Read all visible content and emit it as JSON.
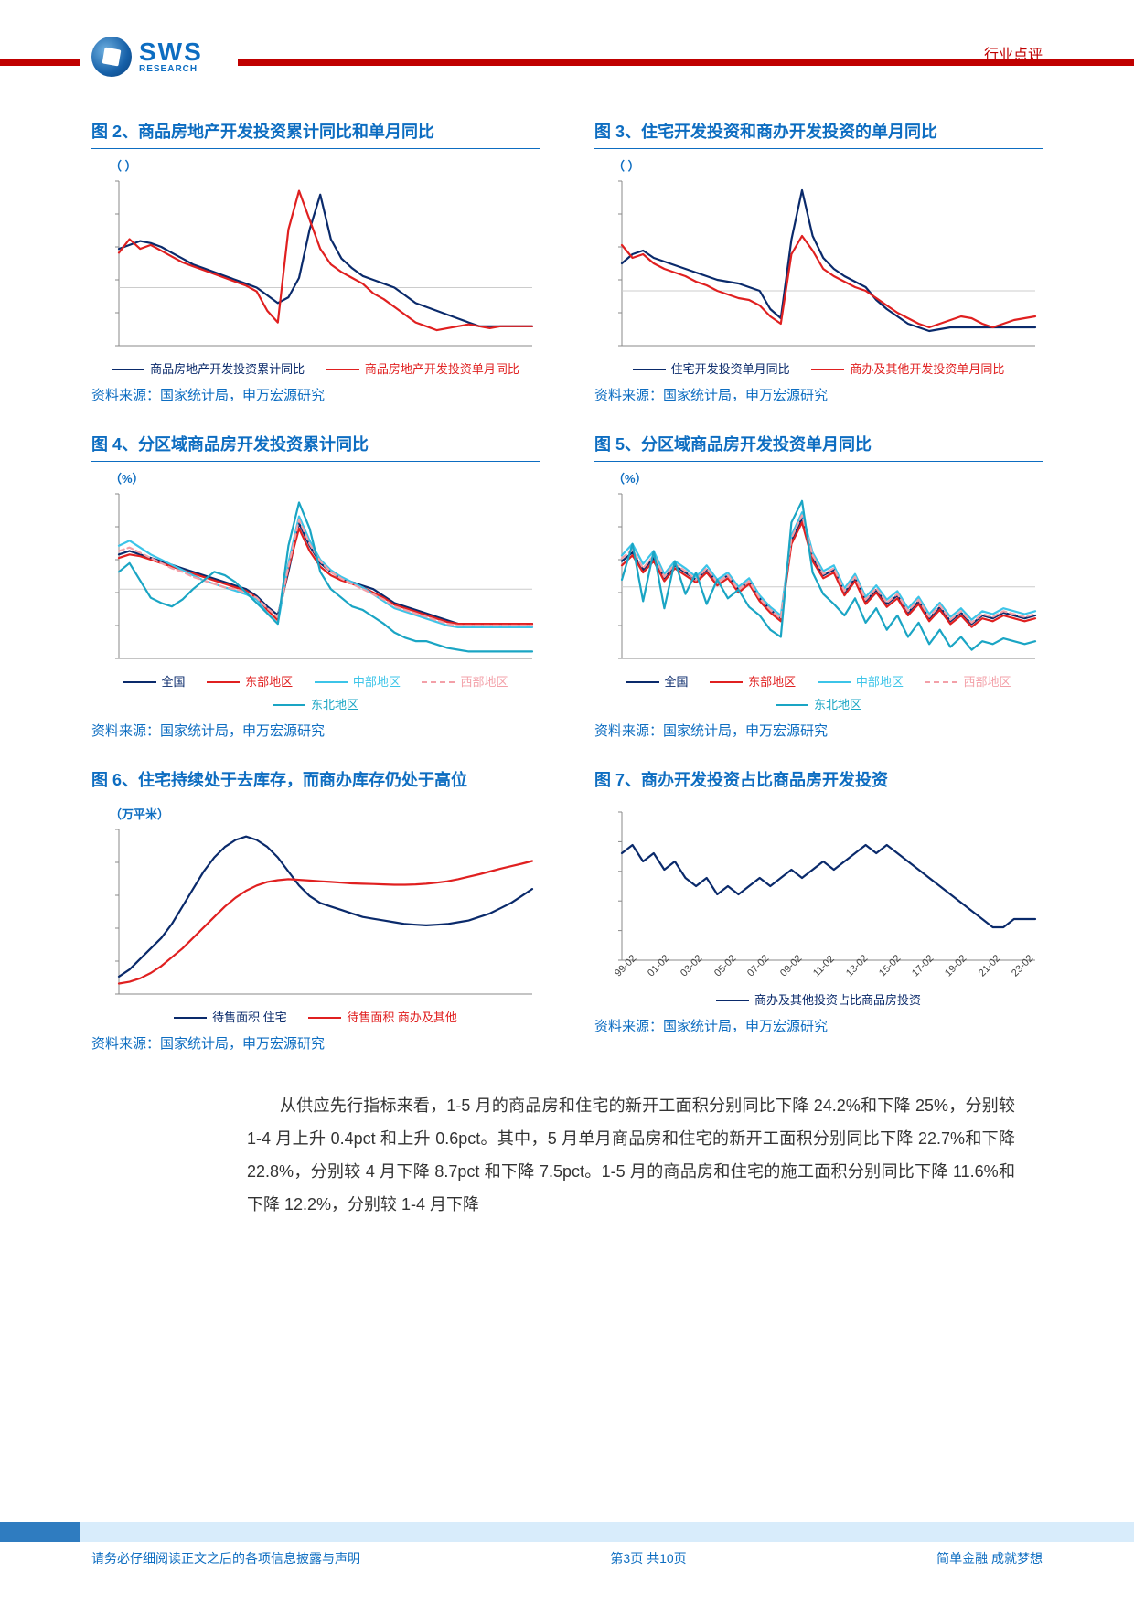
{
  "header": {
    "logo_main": "SWS",
    "logo_sub": "RESEARCH",
    "tag": "行业点评"
  },
  "colors": {
    "brand_blue": "#0d6dc1",
    "brand_red": "#c00000",
    "navy": "#0a2a6b",
    "red": "#e02020",
    "cyan": "#3cc4e8",
    "pink": "#f3a0a8",
    "teal": "#1aa5c4",
    "axis": "#888888",
    "text": "#555555"
  },
  "charts": {
    "c2": {
      "title": "图 2、商品房地产开发投资累计同比和单月同比",
      "unit": "（ ）",
      "type": "line",
      "x": [
        0,
        1,
        2,
        3,
        4,
        5,
        6,
        7,
        8,
        9,
        10,
        11,
        12,
        13,
        14,
        15,
        16,
        17,
        18,
        19,
        20,
        21,
        22,
        23,
        24,
        25,
        26,
        27,
        28,
        29,
        30,
        31,
        32,
        33,
        34,
        35,
        36,
        37,
        38,
        39
      ],
      "series": [
        {
          "name": "商品房地产开发投资累计同比",
          "color": "#0a2a6b",
          "style": "solid",
          "y": [
            20,
            22,
            24,
            23,
            21,
            18,
            15,
            12,
            10,
            8,
            6,
            4,
            2,
            0,
            -4,
            -8,
            -5,
            5,
            30,
            48,
            25,
            15,
            10,
            6,
            4,
            2,
            0,
            -4,
            -8,
            -10,
            -12,
            -14,
            -16,
            -18,
            -20,
            -20,
            -20,
            -20,
            -20,
            -20
          ]
        },
        {
          "name": "商品房地产开发投资单月同比",
          "color": "#e02020",
          "style": "solid",
          "y": [
            18,
            25,
            20,
            22,
            19,
            16,
            13,
            11,
            9,
            7,
            5,
            3,
            1,
            -2,
            -12,
            -18,
            30,
            50,
            35,
            20,
            12,
            8,
            5,
            2,
            -3,
            -6,
            -10,
            -14,
            -18,
            -20,
            -22,
            -21,
            -20,
            -19,
            -20,
            -21,
            -20,
            -20,
            -20,
            -20
          ]
        }
      ],
      "ylim": [
        -30,
        55
      ],
      "source": "资料来源：国家统计局，申万宏源研究"
    },
    "c3": {
      "title": "图 3、住宅开发投资和商办开发投资的单月同比",
      "unit": "（ ）",
      "type": "line",
      "x": [
        0,
        1,
        2,
        3,
        4,
        5,
        6,
        7,
        8,
        9,
        10,
        11,
        12,
        13,
        14,
        15,
        16,
        17,
        18,
        19,
        20,
        21,
        22,
        23,
        24,
        25,
        26,
        27,
        28,
        29,
        30,
        31,
        32,
        33,
        34,
        35,
        36,
        37,
        38,
        39
      ],
      "series": [
        {
          "name": "住宅开发投资单月同比",
          "color": "#0a2a6b",
          "style": "solid",
          "y": [
            15,
            20,
            22,
            18,
            16,
            14,
            12,
            10,
            8,
            6,
            5,
            4,
            2,
            0,
            -10,
            -15,
            28,
            55,
            30,
            18,
            12,
            8,
            5,
            2,
            -5,
            -10,
            -14,
            -18,
            -20,
            -22,
            -21,
            -20,
            -20,
            -20,
            -20,
            -20,
            -20,
            -20,
            -20,
            -20
          ]
        },
        {
          "name": "商办及其他开发投资单月同比",
          "color": "#e02020",
          "style": "solid",
          "y": [
            25,
            18,
            20,
            15,
            12,
            10,
            8,
            5,
            3,
            0,
            -2,
            -4,
            -5,
            -8,
            -14,
            -18,
            20,
            30,
            22,
            12,
            8,
            5,
            2,
            0,
            -4,
            -8,
            -12,
            -15,
            -18,
            -20,
            -18,
            -16,
            -14,
            -15,
            -18,
            -20,
            -18,
            -16,
            -15,
            -14
          ]
        }
      ],
      "ylim": [
        -30,
        60
      ],
      "source": "资料来源：国家统计局，申万宏源研究"
    },
    "c4": {
      "title": "图 4、分区域商品房开发投资累计同比",
      "unit": "（%）",
      "type": "line",
      "x": [
        0,
        1,
        2,
        3,
        4,
        5,
        6,
        7,
        8,
        9,
        10,
        11,
        12,
        13,
        14,
        15,
        16,
        17,
        18,
        19,
        20,
        21,
        22,
        23,
        24,
        25,
        26,
        27,
        28,
        29,
        30,
        31,
        32,
        33,
        34,
        35,
        36,
        37,
        38,
        39
      ],
      "series": [
        {
          "name": "全国",
          "color": "#0a2a6b",
          "style": "solid",
          "y": [
            20,
            22,
            20,
            18,
            16,
            14,
            12,
            10,
            8,
            6,
            4,
            2,
            0,
            -4,
            -10,
            -15,
            10,
            38,
            25,
            15,
            10,
            6,
            4,
            2,
            0,
            -4,
            -8,
            -10,
            -12,
            -14,
            -16,
            -18,
            -20,
            -20,
            -20,
            -20,
            -20,
            -20,
            -20,
            -20
          ]
        },
        {
          "name": "东部地区",
          "color": "#e02020",
          "style": "solid",
          "y": [
            18,
            20,
            19,
            17,
            15,
            13,
            11,
            9,
            7,
            5,
            3,
            1,
            -1,
            -5,
            -12,
            -18,
            12,
            35,
            22,
            13,
            8,
            5,
            3,
            1,
            -2,
            -5,
            -9,
            -11,
            -13,
            -15,
            -17,
            -19,
            -20,
            -20,
            -20,
            -20,
            -20,
            -20,
            -20,
            -20
          ]
        },
        {
          "name": "中部地区",
          "color": "#3cc4e8",
          "style": "solid",
          "y": [
            25,
            28,
            24,
            20,
            17,
            14,
            11,
            8,
            5,
            3,
            1,
            -1,
            -3,
            -6,
            -14,
            -20,
            15,
            42,
            28,
            17,
            11,
            7,
            4,
            1,
            -3,
            -7,
            -11,
            -13,
            -15,
            -17,
            -19,
            -21,
            -22,
            -22,
            -22,
            -22,
            -22,
            -22,
            -22,
            -22
          ]
        },
        {
          "name": "西部地区",
          "color": "#f3a0a8",
          "style": "dashed",
          "y": [
            22,
            24,
            21,
            18,
            15,
            12,
            10,
            7,
            5,
            3,
            1,
            0,
            -2,
            -5,
            -11,
            -16,
            13,
            40,
            26,
            16,
            10,
            6,
            3,
            0,
            -3,
            -6,
            -10,
            -12,
            -14,
            -16,
            -18,
            -20,
            -21,
            -21,
            -21,
            -21,
            -21,
            -21,
            -21,
            -21
          ]
        },
        {
          "name": "东北地区",
          "color": "#1aa5c4",
          "style": "solid",
          "y": [
            10,
            15,
            5,
            -5,
            -8,
            -10,
            -6,
            0,
            5,
            10,
            8,
            4,
            -2,
            -8,
            -14,
            -20,
            25,
            50,
            35,
            10,
            0,
            -5,
            -10,
            -12,
            -16,
            -20,
            -25,
            -28,
            -30,
            -30,
            -32,
            -34,
            -35,
            -36,
            -36,
            -36,
            -36,
            -36,
            -36,
            -36
          ]
        }
      ],
      "ylim": [
        -40,
        55
      ],
      "source": "资料来源：国家统计局，申万宏源研究"
    },
    "c5": {
      "title": "图 5、分区域商品房开发投资单月同比",
      "unit": "（%）",
      "type": "line",
      "x": [
        0,
        1,
        2,
        3,
        4,
        5,
        6,
        7,
        8,
        9,
        10,
        11,
        12,
        13,
        14,
        15,
        16,
        17,
        18,
        19,
        20,
        21,
        22,
        23,
        24,
        25,
        26,
        27,
        28,
        29,
        30,
        31,
        32,
        33,
        34,
        35,
        36,
        37,
        38,
        39
      ],
      "series": [
        {
          "name": "全国",
          "color": "#0a2a6b",
          "style": "solid",
          "y": [
            18,
            24,
            12,
            20,
            6,
            15,
            10,
            5,
            12,
            3,
            8,
            -2,
            4,
            -8,
            -16,
            -22,
            32,
            48,
            20,
            8,
            12,
            -4,
            6,
            -10,
            -2,
            -12,
            -6,
            -18,
            -10,
            -22,
            -14,
            -24,
            -18,
            -26,
            -20,
            -22,
            -18,
            -20,
            -22,
            -20
          ]
        },
        {
          "name": "东部地区",
          "color": "#e02020",
          "style": "solid",
          "y": [
            15,
            22,
            10,
            18,
            4,
            13,
            8,
            3,
            10,
            1,
            6,
            -4,
            2,
            -10,
            -18,
            -24,
            30,
            45,
            18,
            6,
            10,
            -6,
            4,
            -12,
            -4,
            -14,
            -8,
            -20,
            -12,
            -24,
            -16,
            -26,
            -20,
            -28,
            -22,
            -24,
            -20,
            -22,
            -24,
            -22
          ]
        },
        {
          "name": "中部地区",
          "color": "#3cc4e8",
          "style": "solid",
          "y": [
            22,
            30,
            16,
            25,
            9,
            18,
            13,
            7,
            15,
            5,
            10,
            0,
            6,
            -6,
            -14,
            -20,
            36,
            52,
            24,
            11,
            15,
            -1,
            9,
            -7,
            1,
            -9,
            -3,
            -15,
            -7,
            -19,
            -11,
            -21,
            -15,
            -23,
            -17,
            -19,
            -15,
            -17,
            -19,
            -17
          ]
        },
        {
          "name": "西部地区",
          "color": "#f3a0a8",
          "style": "dashed",
          "y": [
            20,
            26,
            13,
            22,
            7,
            16,
            11,
            5,
            13,
            3,
            8,
            -2,
            4,
            -8,
            -16,
            -22,
            34,
            50,
            22,
            9,
            13,
            -3,
            7,
            -9,
            -1,
            -11,
            -5,
            -17,
            -9,
            -21,
            -13,
            -23,
            -17,
            -25,
            -19,
            -21,
            -17,
            -19,
            -21,
            -19
          ]
        },
        {
          "name": "东北地区",
          "color": "#1aa5c4",
          "style": "solid",
          "y": [
            5,
            30,
            -10,
            25,
            -15,
            18,
            -5,
            10,
            -12,
            5,
            -8,
            -2,
            -14,
            -20,
            -30,
            -35,
            45,
            60,
            10,
            -5,
            -12,
            -20,
            -8,
            -25,
            -15,
            -30,
            -20,
            -35,
            -25,
            -40,
            -30,
            -42,
            -35,
            -44,
            -38,
            -40,
            -36,
            -38,
            -40,
            -38
          ]
        }
      ],
      "ylim": [
        -50,
        65
      ],
      "source": "资料来源：国家统计局，申万宏源研究"
    },
    "c6": {
      "title": "图 6、住宅持续处于去库存，而商办库存仍处于高位",
      "unit": "（万平米）",
      "type": "line",
      "x": [
        0,
        1,
        2,
        3,
        4,
        5,
        6,
        7,
        8,
        9,
        10,
        11,
        12,
        13,
        14,
        15,
        16,
        17,
        18,
        19,
        20,
        21,
        22,
        23,
        24,
        25,
        26,
        27,
        28,
        29,
        30,
        31,
        32,
        33,
        34,
        35,
        36,
        37,
        38,
        39
      ],
      "series": [
        {
          "name": "待售面积 住宅",
          "color": "#0a2a6b",
          "style": "solid",
          "y": [
            100,
            120,
            150,
            180,
            210,
            250,
            300,
            350,
            400,
            440,
            470,
            490,
            500,
            490,
            470,
            440,
            400,
            360,
            330,
            310,
            300,
            290,
            280,
            270,
            265,
            260,
            255,
            250,
            248,
            246,
            248,
            250,
            255,
            260,
            270,
            280,
            295,
            310,
            330,
            350
          ]
        },
        {
          "name": "待售面积 商办及其他",
          "color": "#e02020",
          "style": "solid",
          "y": [
            80,
            85,
            95,
            110,
            130,
            155,
            180,
            210,
            240,
            270,
            300,
            325,
            345,
            360,
            370,
            375,
            378,
            376,
            374,
            372,
            370,
            368,
            366,
            365,
            364,
            363,
            362,
            362,
            363,
            365,
            368,
            372,
            378,
            385,
            392,
            400,
            408,
            415,
            422,
            430
          ]
        }
      ],
      "ylim": [
        50,
        520
      ],
      "source": "资料来源：国家统计局，申万宏源研究"
    },
    "c7": {
      "title": "图 7、商办开发投资占比商品房开发投资",
      "unit": "",
      "type": "line",
      "xticks": [
        "99-02",
        "01-02",
        "03-02",
        "05-02",
        "07-02",
        "09-02",
        "11-02",
        "13-02",
        "15-02",
        "17-02",
        "19-02",
        "21-02",
        "23-02"
      ],
      "x": [
        0,
        1,
        2,
        3,
        4,
        5,
        6,
        7,
        8,
        9,
        10,
        11,
        12,
        13,
        14,
        15,
        16,
        17,
        18,
        19,
        20,
        21,
        22,
        23,
        24,
        25,
        26,
        27,
        28,
        29,
        30,
        31,
        32,
        33,
        34,
        35,
        36,
        37,
        38,
        39
      ],
      "series": [
        {
          "name": "商办及其他投资占比商品房投资",
          "color": "#0a2a6b",
          "style": "solid",
          "y": [
            33,
            34,
            32,
            33,
            31,
            32,
            30,
            29,
            30,
            28,
            29,
            28,
            29,
            30,
            29,
            30,
            31,
            30,
            31,
            32,
            31,
            32,
            33,
            34,
            33,
            34,
            33,
            32,
            31,
            30,
            29,
            28,
            27,
            26,
            25,
            24,
            24,
            25,
            25,
            25
          ]
        }
      ],
      "ylim": [
        20,
        38
      ],
      "source": "资料来源：国家统计局，申万宏源研究"
    }
  },
  "body": {
    "p1": "从供应先行指标来看，1-5 月的商品房和住宅的新开工面积分别同比下降 24.2%和下降 25%，分别较 1-4 月上升 0.4pct 和上升 0.6pct。其中，5 月单月商品房和住宅的新开工面积分别同比下降 22.7%和下降 22.8%，分别较 4 月下降 8.7pct 和下降 7.5pct。1-5 月的商品房和住宅的施工面积分别同比下降 11.6%和下降 12.2%，分别较 1-4 月下降"
  },
  "footer": {
    "left": "请务必仔细阅读正文之后的各项信息披露与声明",
    "center": "第3页 共10页",
    "right": "简单金融 成就梦想"
  }
}
